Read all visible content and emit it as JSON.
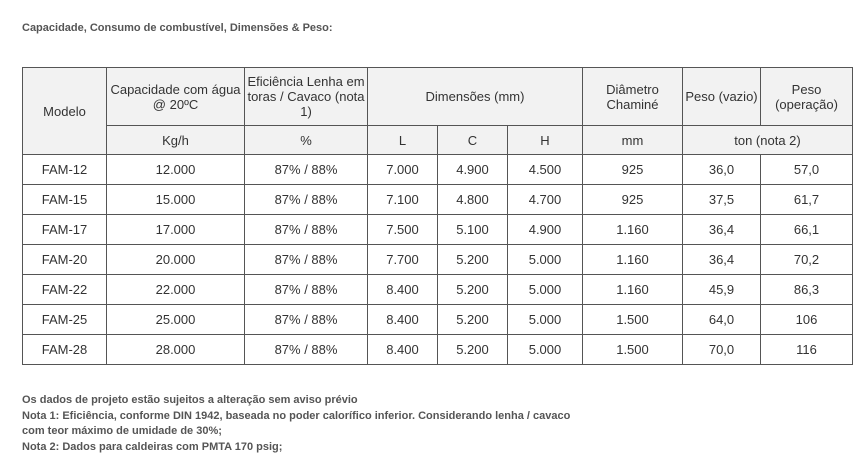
{
  "title": "Capacidade, Consumo de combustível, Dimensões & Peso:",
  "table": {
    "headers": {
      "modelo": "Modelo",
      "capacidade": "Capacidade com água @ 20ºC",
      "eficiencia": "Eficiência Lenha em toras / Cavaco (nota 1)",
      "dimensoes": "Dimensões (mm)",
      "diametro": "Diâmetro Chaminé",
      "peso_vazio": "Peso (vazio)",
      "peso_operacao": "Peso (operação)"
    },
    "units": {
      "capacidade": "Kg/h",
      "eficiencia": "%",
      "L": "L",
      "C": "C",
      "H": "H",
      "diametro": "mm",
      "peso": "ton (nota 2)"
    },
    "rows": [
      {
        "modelo": "FAM-12",
        "capacidade": "12.000",
        "eficiencia": "87% / 88%",
        "L": "7.000",
        "C": "4.900",
        "H": "4.500",
        "diametro": "925",
        "peso_vazio": "36,0",
        "peso_operacao": "57,0"
      },
      {
        "modelo": "FAM-15",
        "capacidade": "15.000",
        "eficiencia": "87% / 88%",
        "L": "7.100",
        "C": "4.800",
        "H": "4.700",
        "diametro": "925",
        "peso_vazio": "37,5",
        "peso_operacao": "61,7"
      },
      {
        "modelo": "FAM-17",
        "capacidade": "17.000",
        "eficiencia": "87% / 88%",
        "L": "7.500",
        "C": "5.100",
        "H": "4.900",
        "diametro": "1.160",
        "peso_vazio": "36,4",
        "peso_operacao": "66,1"
      },
      {
        "modelo": "FAM-20",
        "capacidade": "20.000",
        "eficiencia": "87% / 88%",
        "L": "7.700",
        "C": "5.200",
        "H": "5.000",
        "diametro": "1.160",
        "peso_vazio": "36,4",
        "peso_operacao": "70,2"
      },
      {
        "modelo": "FAM-22",
        "capacidade": "22.000",
        "eficiencia": "87% / 88%",
        "L": "8.400",
        "C": "5.200",
        "H": "5.000",
        "diametro": "1.160",
        "peso_vazio": "45,9",
        "peso_operacao": "86,3"
      },
      {
        "modelo": "FAM-25",
        "capacidade": "25.000",
        "eficiencia": "87% / 88%",
        "L": "8.400",
        "C": "5.200",
        "H": "5.000",
        "diametro": "1.500",
        "peso_vazio": "64,0",
        "peso_operacao": "106"
      },
      {
        "modelo": "FAM-28",
        "capacidade": "28.000",
        "eficiencia": "87% / 88%",
        "L": "8.400",
        "C": "5.200",
        "H": "5.000",
        "diametro": "1.500",
        "peso_vazio": "70,0",
        "peso_operacao": "116"
      }
    ]
  },
  "notes": [
    "Os dados de projeto estão sujeitos a alteração sem aviso prévio",
    "Nota 1: Eficiência, conforme DIN 1942, baseada no poder calorífico inferior. Considerando lenha / cavaco",
    "com teor máximo de umidade de 30%;",
    "Nota 2: Dados para caldeiras com PMTA 170 psig;"
  ]
}
